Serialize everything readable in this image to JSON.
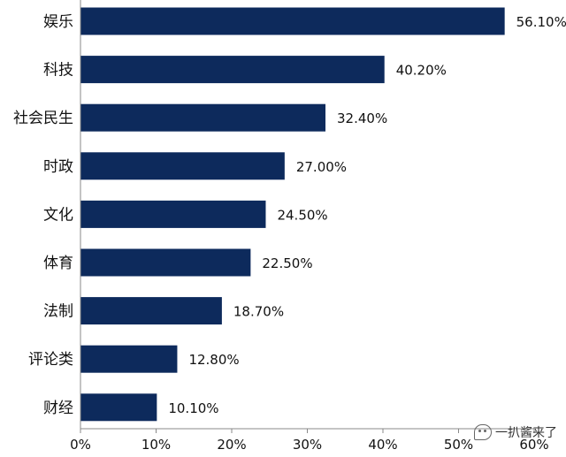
{
  "chart_data": {
    "type": "bar",
    "orientation": "horizontal",
    "categories": [
      "娱乐",
      "科技",
      "社会民生",
      "时政",
      "文化",
      "体育",
      "法制",
      "评论类",
      "财经"
    ],
    "values": [
      56.1,
      40.2,
      32.4,
      27.0,
      24.5,
      22.5,
      18.7,
      12.8,
      10.1
    ],
    "value_labels": [
      "56.10%",
      "40.20%",
      "32.40%",
      "27.00%",
      "24.50%",
      "22.50%",
      "18.70%",
      "12.80%",
      "10.10%"
    ],
    "xlim": [
      0,
      60
    ],
    "x_ticks": [
      0,
      10,
      20,
      30,
      40,
      50,
      60
    ],
    "x_tick_labels": [
      "0%",
      "10%",
      "20%",
      "30%",
      "40%",
      "50%",
      "60%"
    ],
    "grid": false,
    "bar_color": "#0d2a5c",
    "title": "",
    "xlabel": "",
    "ylabel": ""
  },
  "watermark": {
    "text": "一扒酱来了",
    "icon": "chat-bubble-icon"
  }
}
